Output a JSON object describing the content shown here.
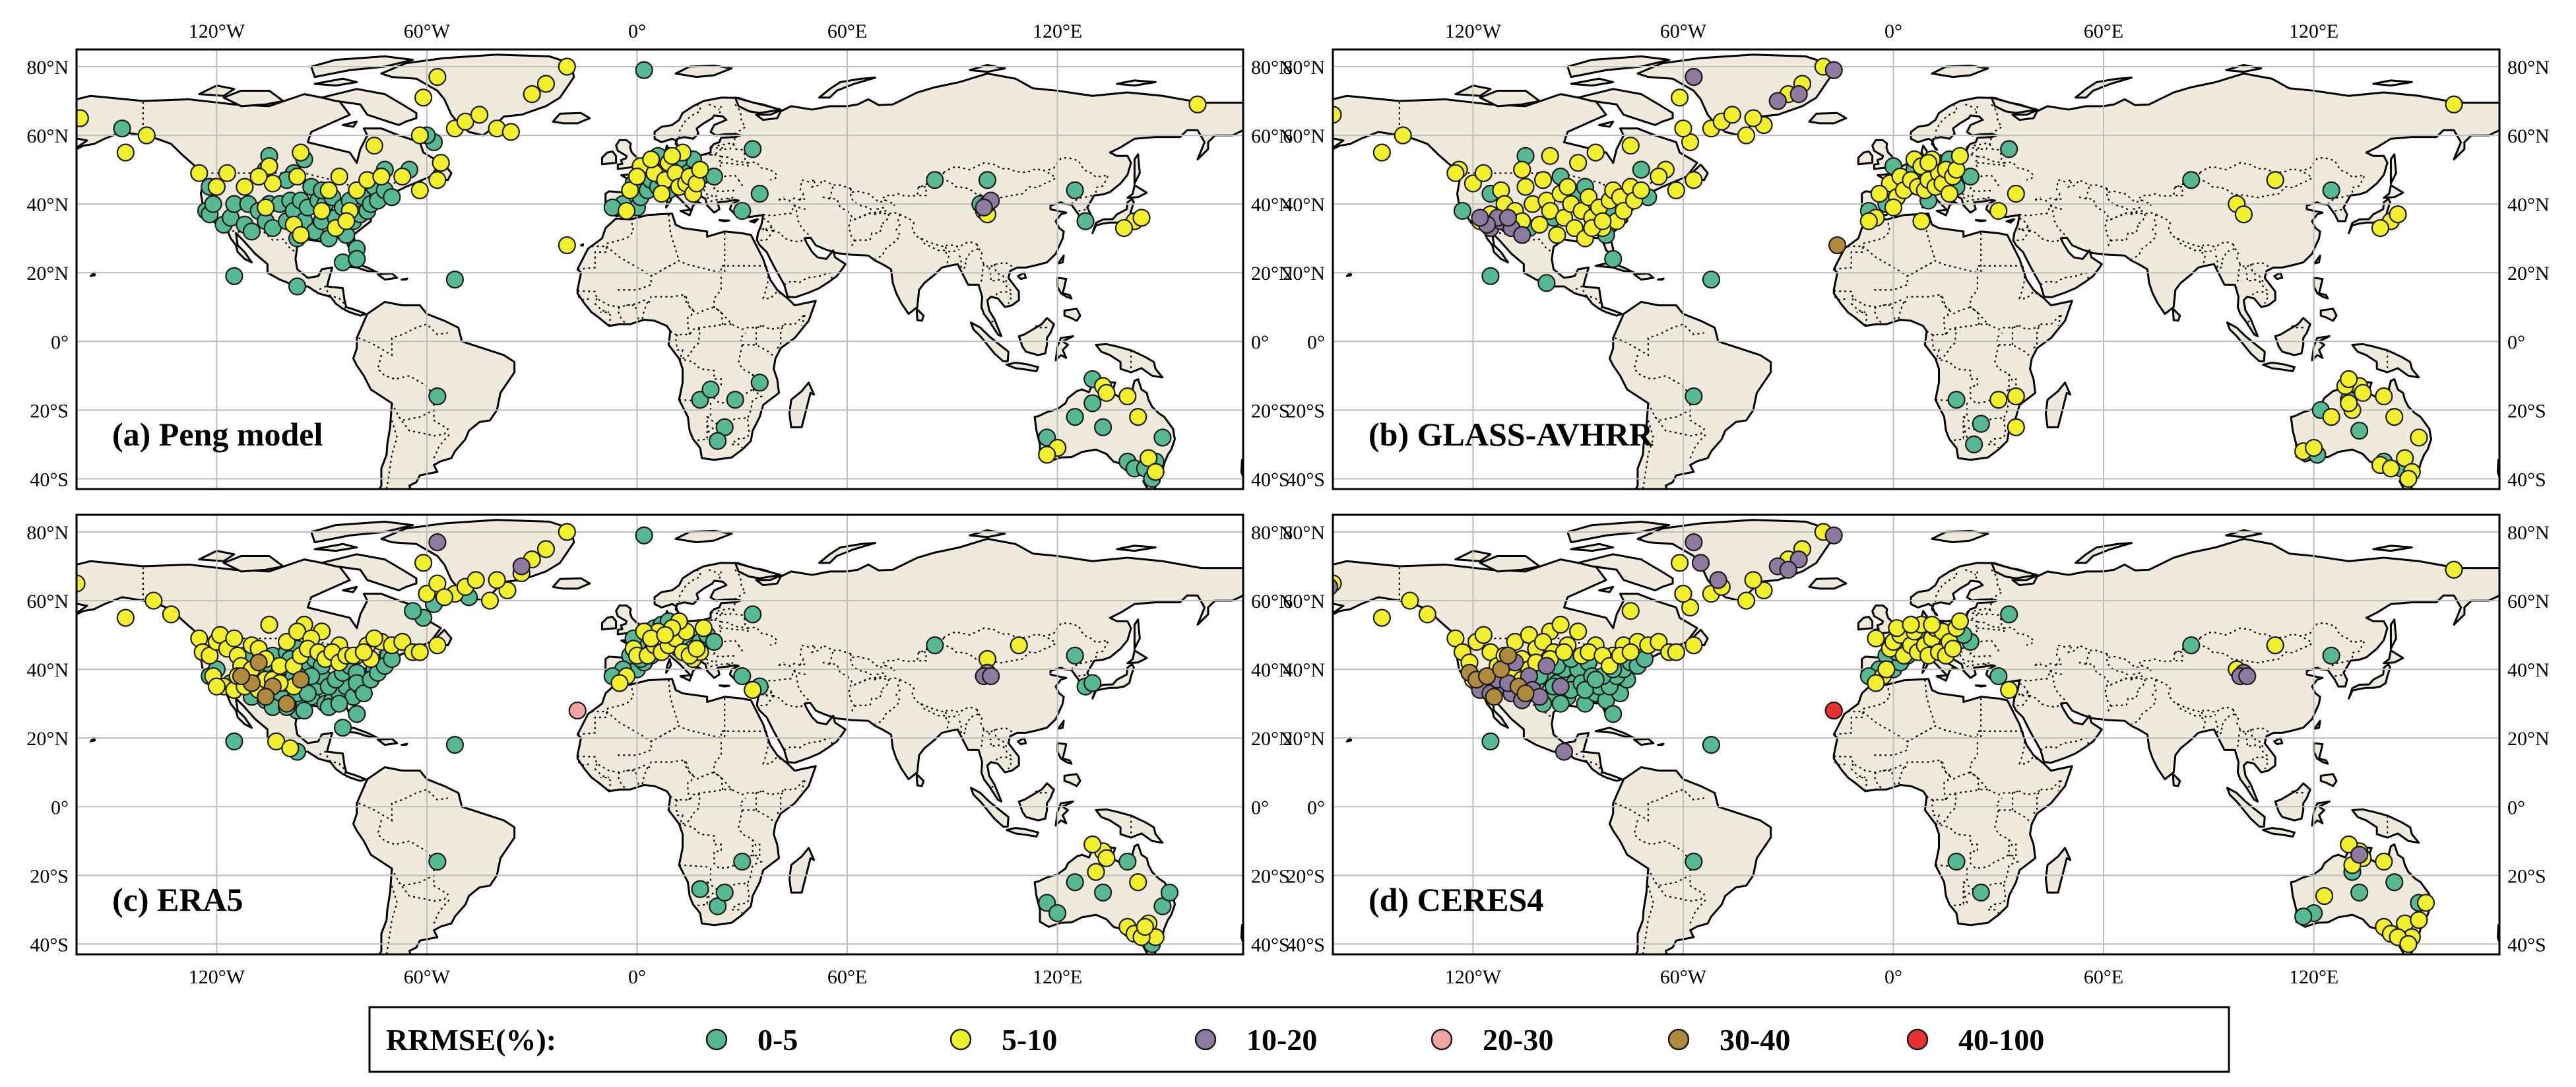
{
  "map": {
    "panels": [
      {
        "id": "a",
        "title": "(a) Peng model"
      },
      {
        "id": "b",
        "title": "(b) GLASS-AVHRR"
      },
      {
        "id": "c",
        "title": "(c) ERA5"
      },
      {
        "id": "d",
        "title": "(d) CERES4"
      }
    ],
    "lon_ticks": [
      {
        "lon": -120,
        "label": "120°W"
      },
      {
        "lon": -60,
        "label": "60°W"
      },
      {
        "lon": 0,
        "label": "0°"
      },
      {
        "lon": 60,
        "label": "60°E"
      },
      {
        "lon": 120,
        "label": "120°E"
      }
    ],
    "lat_ticks": [
      {
        "lat": 80,
        "label": "80°N"
      },
      {
        "lat": 60,
        "label": "60°N"
      },
      {
        "lat": 40,
        "label": "40°N"
      },
      {
        "lat": 20,
        "label": "20°N"
      },
      {
        "lat": 0,
        "label": "0°"
      },
      {
        "lat": -20,
        "label": "20°S"
      },
      {
        "lat": -40,
        "label": "40°S"
      }
    ],
    "lon_range": [
      -160,
      173
    ],
    "lat_range": [
      -43,
      85
    ],
    "land_color": "#efeadb",
    "legend": {
      "title": "RRMSE(%):",
      "classes": [
        {
          "label": "0-5",
          "color": "#57b894"
        },
        {
          "label": "5-10",
          "color": "#f2ef2c"
        },
        {
          "label": "10-20",
          "color": "#8e7a9e"
        },
        {
          "label": "20-30",
          "color": "#f2a3a3"
        },
        {
          "label": "30-40",
          "color": "#b08a3c"
        },
        {
          "label": "40-100",
          "color": "#e83232"
        }
      ]
    }
  }
}
